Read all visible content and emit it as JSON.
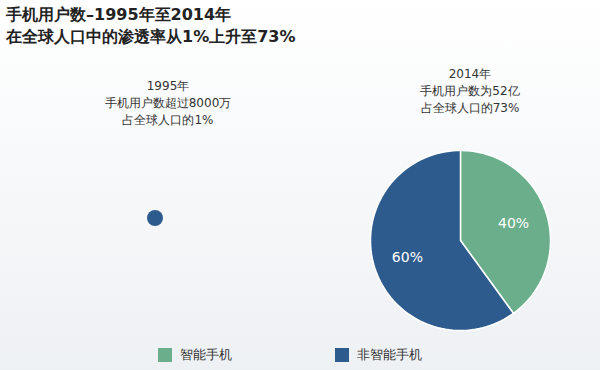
{
  "chart_data": {
    "type": "pie",
    "title": "手机用户数–1995年至2014年",
    "subtitle": "在全球人口中的渗透率从1%上升至73%",
    "annotations": [
      [
        "1995年",
        "手机用户数超过8000万",
        "占全球人口的1%"
      ],
      [
        "2014年",
        "手机用户数为52亿",
        "占全球人口的73%"
      ]
    ],
    "categories": [
      "智能手机",
      "非智能手机"
    ],
    "values": [
      40,
      60
    ],
    "value_labels": [
      "40%",
      "60%"
    ],
    "colors": [
      "#6aae8c",
      "#2e5b8e"
    ],
    "data_labels": true,
    "legend": "bottom"
  }
}
